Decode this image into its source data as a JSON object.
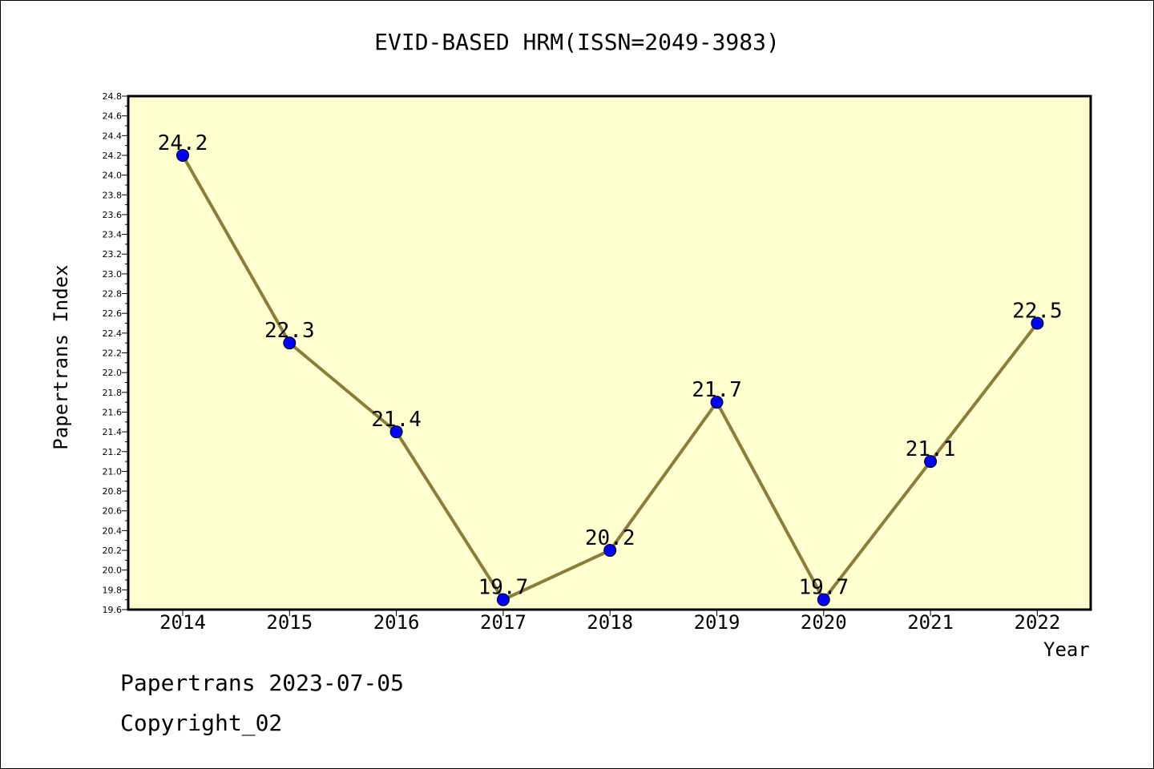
{
  "chart": {
    "title": "EVID-BASED HRM(ISSN=2049-3983)",
    "ylabel": "Papertrans Index",
    "xlabel": "Year"
  },
  "footer": {
    "line1": "Papertrans 2023-07-05",
    "line2": "Copyright_02"
  },
  "colors": {
    "plot_background": "#ffffd0",
    "line": "#8b7d3a",
    "marker": "#0000ff"
  },
  "chart_data": {
    "type": "line",
    "title": "EVID-BASED HRM(ISSN=2049-3983)",
    "xlabel": "Year",
    "ylabel": "Papertrans Index",
    "x": [
      "2014",
      "2015",
      "2016",
      "2017",
      "2018",
      "2019",
      "2020",
      "2021",
      "2022"
    ],
    "series": [
      {
        "values": [
          24.2,
          22.3,
          21.4,
          19.7,
          20.2,
          21.7,
          19.7,
          21.1,
          22.5
        ],
        "data_labels": [
          "24.2",
          "22.3",
          "21.4",
          "19.7",
          "20.2",
          "21.7",
          "19.7",
          "21.1",
          "22.5"
        ]
      }
    ],
    "ylim": [
      19.6,
      24.8
    ],
    "yticks": [
      "19.6",
      "19.8",
      "20.0",
      "20.2",
      "20.4",
      "20.6",
      "20.8",
      "21.0",
      "21.2",
      "21.4",
      "21.6",
      "21.8",
      "22.0",
      "22.2",
      "22.4",
      "22.6",
      "22.8",
      "23.0",
      "23.2",
      "23.4",
      "23.6",
      "23.8",
      "24.0",
      "24.2",
      "24.4",
      "24.6",
      "24.8"
    ],
    "grid": false,
    "markers": "circle"
  }
}
